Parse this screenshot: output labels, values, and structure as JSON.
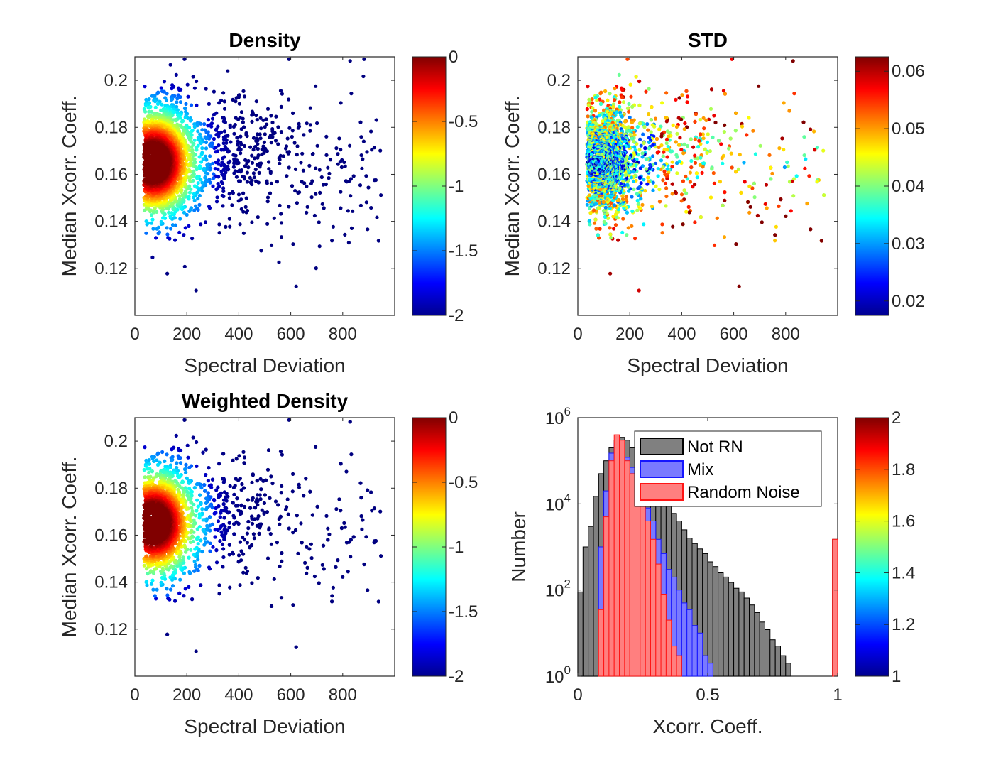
{
  "chart_data": [
    {
      "type": "scatter",
      "title": "Density",
      "xlabel": "Spectral Deviation",
      "ylabel": "Median Xcorr. Coeff.",
      "xlim": [
        0,
        1000
      ],
      "ylim": [
        0.1,
        0.21
      ],
      "xticks": [
        0,
        200,
        400,
        600,
        800
      ],
      "yticks": [
        0.12,
        0.14,
        0.16,
        0.18,
        0.2
      ],
      "xtick_labels": [
        "0",
        "200",
        "400",
        "600",
        "800"
      ],
      "ytick_labels": [
        "0.12",
        "0.14",
        "0.16",
        "0.18",
        "0.2"
      ],
      "color_mode": "density",
      "colormap": "jet",
      "colorbar": {
        "clim": [
          -2,
          0
        ],
        "ticks": [
          0,
          -0.5,
          -1,
          -1.5,
          -2
        ],
        "tick_labels": [
          "0",
          "-0.5",
          "-1",
          "-1.5",
          "-2"
        ]
      },
      "cluster_center": {
        "x": 70,
        "y": 0.165
      },
      "point_count_approx": 3000
    },
    {
      "type": "scatter",
      "title": "STD",
      "xlabel": "Spectral Deviation",
      "ylabel": "Median Xcorr. Coeff.",
      "xlim": [
        0,
        1000
      ],
      "ylim": [
        0.1,
        0.21
      ],
      "xticks": [
        0,
        200,
        400,
        600,
        800
      ],
      "yticks": [
        0.12,
        0.14,
        0.16,
        0.18,
        0.2
      ],
      "xtick_labels": [
        "0",
        "200",
        "400",
        "600",
        "800"
      ],
      "ytick_labels": [
        "0.12",
        "0.14",
        "0.16",
        "0.18",
        "0.2"
      ],
      "color_mode": "std",
      "colormap": "jet",
      "colorbar": {
        "clim": [
          0.0175,
          0.0625
        ],
        "ticks": [
          0.06,
          0.05,
          0.04,
          0.03,
          0.02
        ],
        "tick_labels": [
          "0.06",
          "0.05",
          "0.04",
          "0.03",
          "0.02"
        ]
      },
      "point_count_approx": 3000
    },
    {
      "type": "scatter",
      "title": "Weighted Density",
      "xlabel": "Spectral Deviation",
      "ylabel": "Median Xcorr. Coeff.",
      "xlim": [
        0,
        1000
      ],
      "ylim": [
        0.1,
        0.21
      ],
      "xticks": [
        0,
        200,
        400,
        600,
        800
      ],
      "yticks": [
        0.12,
        0.14,
        0.16,
        0.18,
        0.2
      ],
      "xtick_labels": [
        "0",
        "200",
        "400",
        "600",
        "800"
      ],
      "ytick_labels": [
        "0.12",
        "0.14",
        "0.16",
        "0.18",
        "0.2"
      ],
      "color_mode": "density",
      "colormap": "jet",
      "colorbar": {
        "clim": [
          -2,
          0
        ],
        "ticks": [
          0,
          -0.5,
          -1,
          -1.5,
          -2
        ],
        "tick_labels": [
          "0",
          "-0.5",
          "-1",
          "-1.5",
          "-2"
        ]
      },
      "cluster_center": {
        "x": 70,
        "y": 0.165
      },
      "point_count_approx": 3000
    },
    {
      "type": "bar",
      "subtype": "histogram",
      "title": "",
      "xlabel": "Xcorr. Coeff.",
      "ylabel": "Number",
      "xlim": [
        0,
        1
      ],
      "ylim": [
        1,
        1000000
      ],
      "yscale": "log",
      "xticks": [
        0,
        0.5,
        1
      ],
      "xtick_labels": [
        "0",
        "0.5",
        "1"
      ],
      "yticks": [
        1,
        100,
        10000,
        1000000
      ],
      "ytick_labels": [
        {
          "base": "10",
          "exp": "0"
        },
        {
          "base": "10",
          "exp": "2"
        },
        {
          "base": "10",
          "exp": "4"
        },
        {
          "base": "10",
          "exp": "6"
        }
      ],
      "bin_width": 0.02,
      "bin_starts": [
        0,
        0.02,
        0.04,
        0.06,
        0.08,
        0.1,
        0.12,
        0.14,
        0.16,
        0.18,
        0.2,
        0.22,
        0.24,
        0.26,
        0.28,
        0.3,
        0.32,
        0.34,
        0.36,
        0.38,
        0.4,
        0.42,
        0.44,
        0.46,
        0.48,
        0.5,
        0.52,
        0.54,
        0.56,
        0.58,
        0.6,
        0.62,
        0.64,
        0.66,
        0.68,
        0.7,
        0.72,
        0.74,
        0.76,
        0.78,
        0.8,
        0.82,
        0.84,
        0.86,
        0.88,
        0.9,
        0.92,
        0.94,
        0.96,
        0.98
      ],
      "legend": {
        "location": "top-right",
        "entries": [
          "Not RN",
          "Mix",
          "Random Noise"
        ]
      },
      "series": [
        {
          "name": "Not RN",
          "color": "#808080",
          "edge": "#000000",
          "values": [
            90,
            1000,
            3000,
            15000,
            50000,
            100000,
            200000,
            300000,
            350000,
            300000,
            200000,
            150000,
            100000,
            70000,
            50000,
            30000,
            20000,
            10000,
            6000,
            4000,
            2500,
            1600,
            1200,
            900,
            700,
            450,
            350,
            250,
            200,
            150,
            110,
            90,
            65,
            45,
            30,
            18,
            12,
            7,
            5,
            3,
            2,
            0,
            0,
            0,
            0,
            0,
            0,
            0,
            0,
            1500
          ]
        },
        {
          "name": "Mix",
          "color": "#7a7aff",
          "edge": "#1515ff",
          "values": [
            0,
            0,
            0,
            0,
            1000,
            20000,
            150000,
            250000,
            200000,
            120000,
            70000,
            30000,
            15000,
            8000,
            4000,
            1500,
            700,
            300,
            200,
            100,
            50,
            35,
            15,
            10,
            3,
            2,
            0,
            0,
            0,
            0,
            0,
            0,
            0,
            0,
            0,
            0,
            0,
            0,
            0,
            0,
            0,
            0,
            0,
            0,
            0,
            0,
            0,
            0,
            0,
            0
          ]
        },
        {
          "name": "Random Noise",
          "color": "#ff7f7f",
          "edge": "#ff1515",
          "values": [
            0,
            0,
            0,
            0,
            35,
            5000,
            100000,
            400000,
            300000,
            100000,
            50000,
            30000,
            10000,
            4000,
            1500,
            400,
            80,
            20,
            5,
            3,
            1,
            0,
            0,
            0,
            0,
            0,
            0,
            0,
            0,
            0,
            0,
            0,
            0,
            0,
            0,
            0,
            0,
            0,
            0,
            0,
            0,
            0,
            0,
            0,
            0,
            0,
            0,
            0,
            0,
            1500
          ]
        }
      ],
      "colorbar": {
        "clim": [
          1,
          2
        ],
        "ticks": [
          2,
          1.8,
          1.6,
          1.4,
          1.2,
          1
        ],
        "tick_labels": [
          "2",
          "1.8",
          "1.6",
          "1.4",
          "1.2",
          "1"
        ]
      }
    }
  ]
}
